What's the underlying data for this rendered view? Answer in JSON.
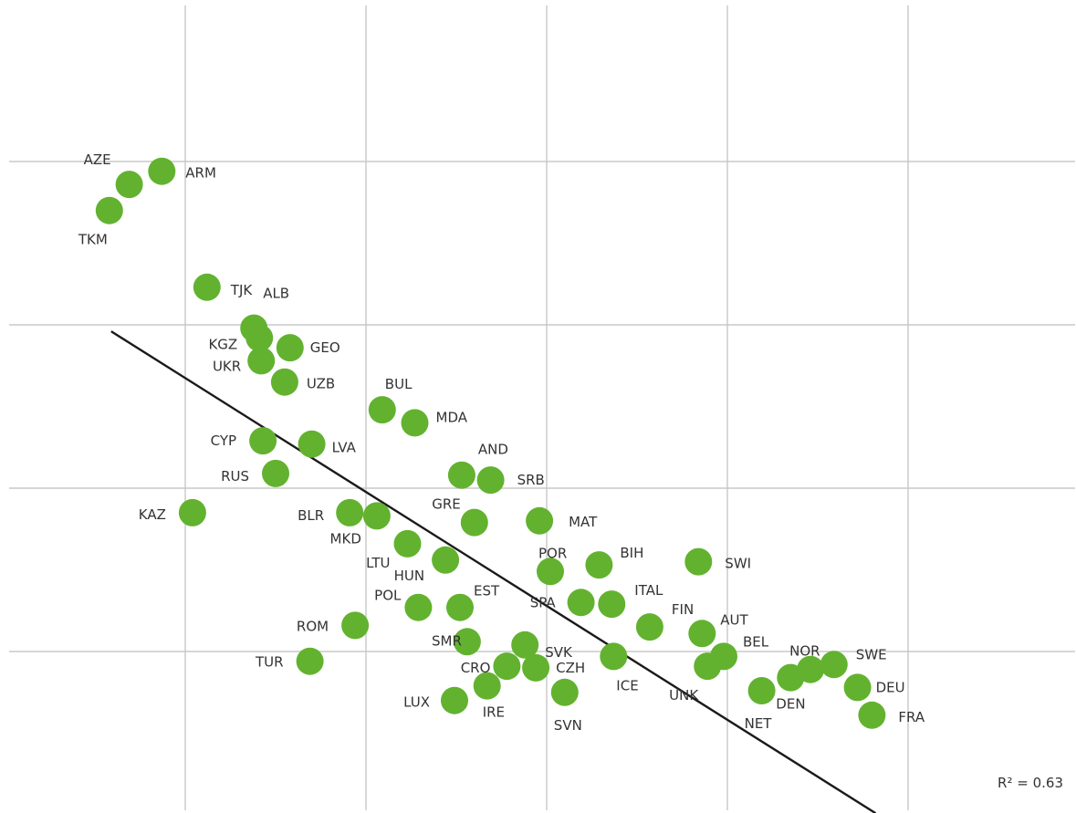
{
  "chart_data": {
    "type": "scatter",
    "title": "",
    "xlabel": "",
    "ylabel": "",
    "xlim": [
      -1,
      5
    ],
    "ylim": [
      0.95,
      5
    ],
    "grid": true,
    "color": "#62b22f",
    "points": [
      {
        "label": "AZE",
        "x": -0.31,
        "y": 4.86
      },
      {
        "label": "ARM",
        "x": -0.13,
        "y": 4.94
      },
      {
        "label": "TKM",
        "x": -0.42,
        "y": 4.7
      },
      {
        "label": "TJK",
        "x": 0.12,
        "y": 4.23
      },
      {
        "label": "ALB",
        "x": 0.38,
        "y": 3.98
      },
      {
        "label": "KGZ",
        "x": 0.41,
        "y": 3.92
      },
      {
        "label": "GEO",
        "x": 0.58,
        "y": 3.86
      },
      {
        "label": "UKR",
        "x": 0.42,
        "y": 3.78
      },
      {
        "label": "UZB",
        "x": 0.55,
        "y": 3.65
      },
      {
        "label": "BUL",
        "x": 1.09,
        "y": 3.48
      },
      {
        "label": "MDA",
        "x": 1.27,
        "y": 3.4
      },
      {
        "label": "CYP",
        "x": 0.43,
        "y": 3.29
      },
      {
        "label": "LVA",
        "x": 0.7,
        "y": 3.27
      },
      {
        "label": "AND",
        "x": 1.53,
        "y": 3.08
      },
      {
        "label": "SRB",
        "x": 1.69,
        "y": 3.05
      },
      {
        "label": "RUS",
        "x": 0.5,
        "y": 3.09
      },
      {
        "label": "KAZ",
        "x": 0.04,
        "y": 2.85
      },
      {
        "label": "BLR",
        "x": 0.91,
        "y": 2.85
      },
      {
        "label": "GRE",
        "x": 1.6,
        "y": 2.79
      },
      {
        "label": "MAT",
        "x": 1.96,
        "y": 2.8
      },
      {
        "label": "MKD",
        "x": 1.06,
        "y": 2.83
      },
      {
        "label": "LTU",
        "x": 1.23,
        "y": 2.66
      },
      {
        "label": "HUN",
        "x": 1.44,
        "y": 2.56
      },
      {
        "label": "POR",
        "x": 2.02,
        "y": 2.49
      },
      {
        "label": "BIH",
        "x": 2.29,
        "y": 2.53
      },
      {
        "label": "SWI",
        "x": 2.84,
        "y": 2.55
      },
      {
        "label": "SPA",
        "x": 2.19,
        "y": 2.3
      },
      {
        "label": "ITAL",
        "x": 2.36,
        "y": 2.29
      },
      {
        "label": "POL",
        "x": 1.29,
        "y": 2.27
      },
      {
        "label": "EST",
        "x": 1.52,
        "y": 2.27
      },
      {
        "label": "FIN",
        "x": 2.57,
        "y": 2.15
      },
      {
        "label": "AUT",
        "x": 2.86,
        "y": 2.11
      },
      {
        "label": "ROM",
        "x": 0.94,
        "y": 2.16
      },
      {
        "label": "SMR",
        "x": 1.56,
        "y": 2.06
      },
      {
        "label": "SVK",
        "x": 1.88,
        "y": 2.04
      },
      {
        "label": "BEL",
        "x": 2.98,
        "y": 1.97
      },
      {
        "label": "ICE",
        "x": 2.37,
        "y": 1.97
      },
      {
        "label": "CRO",
        "x": 1.78,
        "y": 1.91
      },
      {
        "label": "CZH",
        "x": 1.94,
        "y": 1.9
      },
      {
        "label": "UNK",
        "x": 2.89,
        "y": 1.91
      },
      {
        "label": "TUR",
        "x": 0.69,
        "y": 1.94
      },
      {
        "label": "NOR",
        "x": 3.46,
        "y": 1.89
      },
      {
        "label": "SWE",
        "x": 3.59,
        "y": 1.92
      },
      {
        "label": "DEN",
        "x": 3.35,
        "y": 1.84
      },
      {
        "label": "DEU",
        "x": 3.72,
        "y": 1.78
      },
      {
        "label": "NET",
        "x": 3.19,
        "y": 1.76
      },
      {
        "label": "IRE",
        "x": 1.67,
        "y": 1.79
      },
      {
        "label": "SVN",
        "x": 2.1,
        "y": 1.75
      },
      {
        "label": "LUX",
        "x": 1.49,
        "y": 1.7
      },
      {
        "label": "FRA",
        "x": 3.8,
        "y": 1.61
      }
    ],
    "trendline": {
      "x1": -0.41,
      "y1": 3.96,
      "x2": 3.82,
      "y2": 1.01
    },
    "annotation": "R² = 0.63"
  }
}
